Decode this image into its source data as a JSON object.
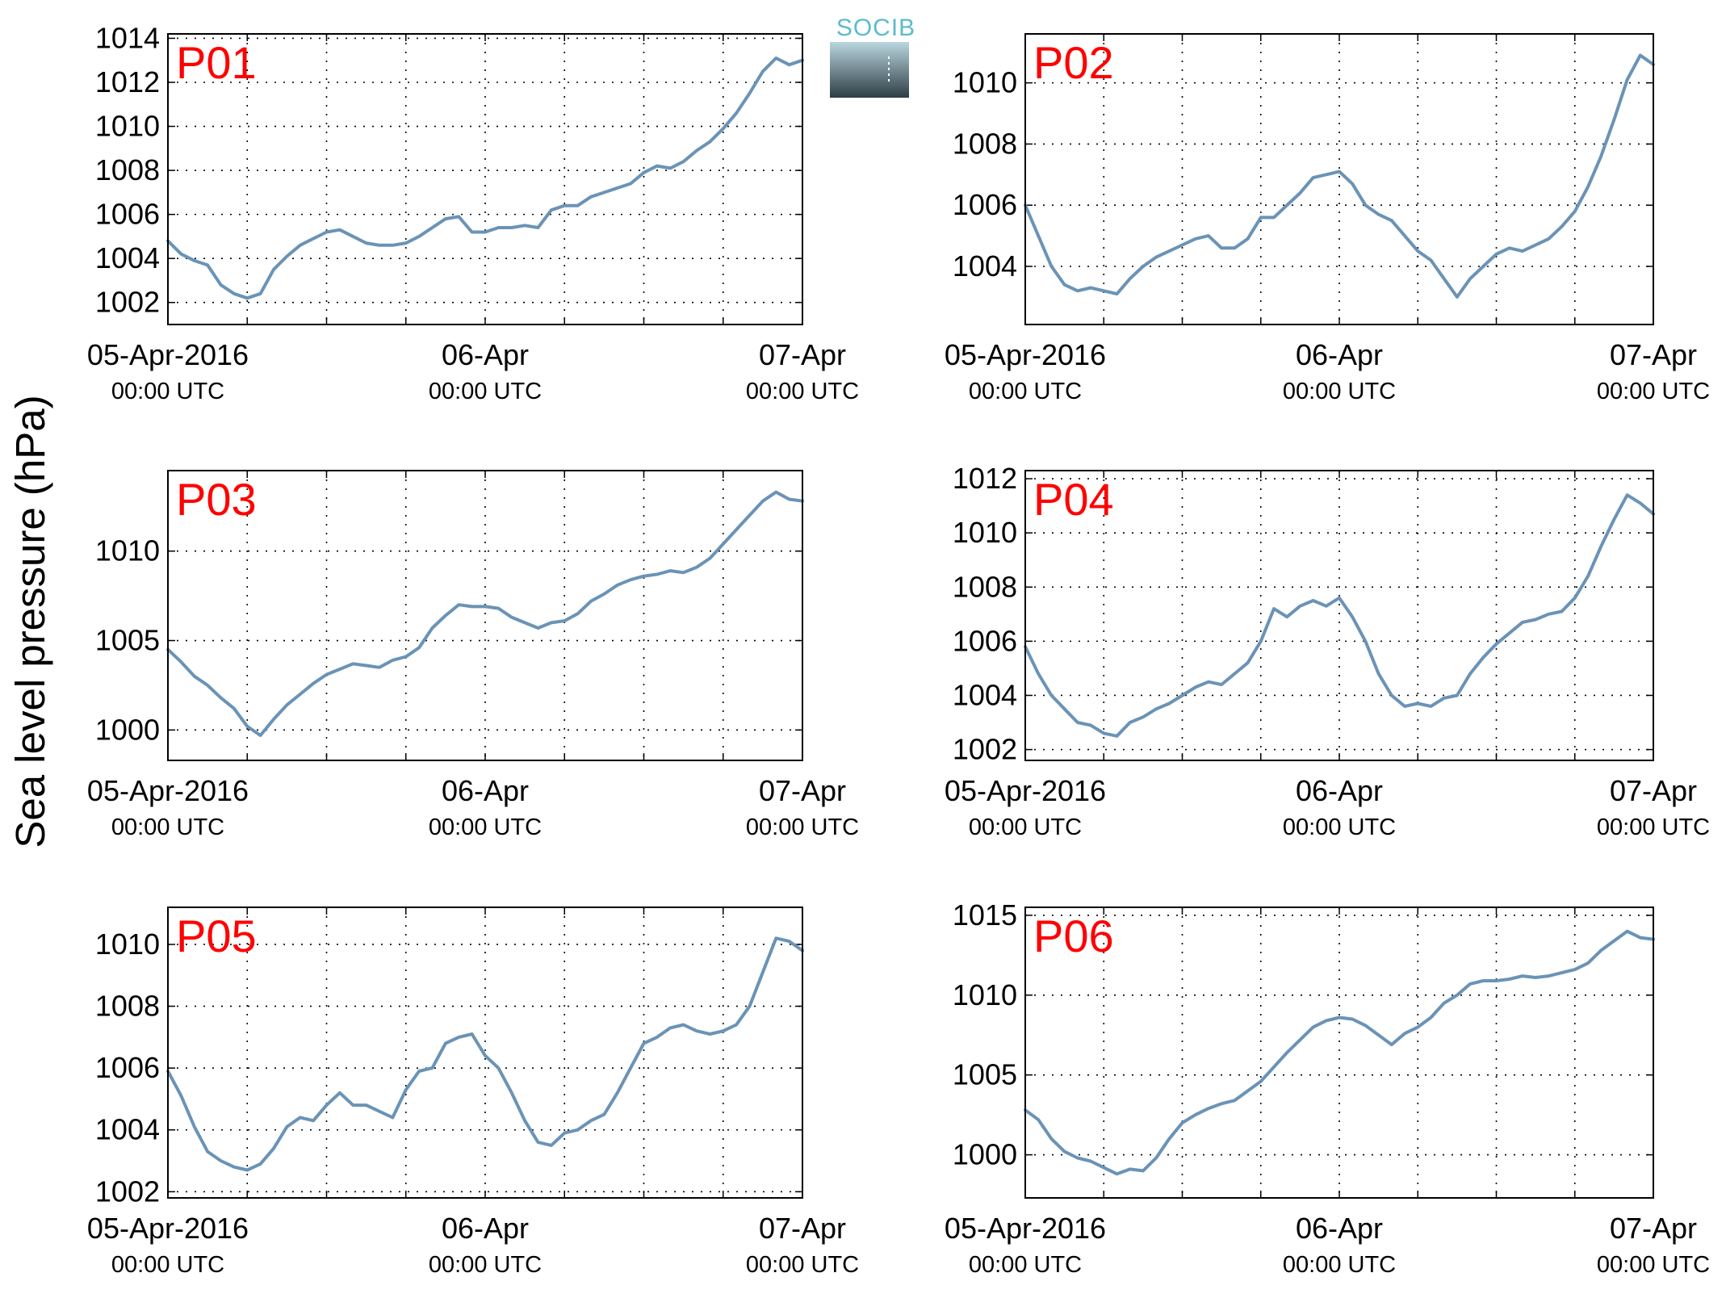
{
  "figure": {
    "ylabel": "Sea level pressure (hPa)",
    "logo_text": "SOCIB",
    "line_color": "#6a93b6",
    "panel_label_color": "#ff0000",
    "logo_colors": {
      "text": "#5bbccc",
      "top": "#b9d6de",
      "bottom": "#2e3d46"
    }
  },
  "chart_data": [
    {
      "type": "line",
      "panel": "P01",
      "x_tick_labels": [
        {
          "date": "05-Apr-2016",
          "time": "00:00 UTC"
        },
        {
          "date": "06-Apr",
          "time": "00:00 UTC"
        },
        {
          "date": "07-Apr",
          "time": "00:00 UTC"
        }
      ],
      "x_range_hours": [
        0,
        48
      ],
      "ylim": [
        1001,
        1014.2
      ],
      "yticks": [
        1002,
        1004,
        1006,
        1008,
        1010,
        1012,
        1014
      ],
      "grid": true,
      "x_hours": [
        0,
        1,
        2,
        3,
        4,
        5,
        6,
        7,
        8,
        9,
        10,
        11,
        12,
        13,
        14,
        15,
        16,
        17,
        18,
        19,
        20,
        21,
        22,
        23,
        24,
        25,
        26,
        27,
        28,
        29,
        30,
        31,
        32,
        33,
        34,
        35,
        36,
        37,
        38,
        39,
        40,
        41,
        42,
        43,
        44,
        45,
        46,
        47,
        48
      ],
      "values": [
        1004.8,
        1004.2,
        1003.9,
        1003.7,
        1002.8,
        1002.4,
        1002.2,
        1002.4,
        1003.5,
        1004.1,
        1004.6,
        1004.9,
        1005.2,
        1005.3,
        1005.0,
        1004.7,
        1004.6,
        1004.6,
        1004.7,
        1005.0,
        1005.4,
        1005.8,
        1005.9,
        1005.2,
        1005.2,
        1005.4,
        1005.4,
        1005.5,
        1005.4,
        1006.2,
        1006.4,
        1006.4,
        1006.8,
        1007.0,
        1007.2,
        1007.4,
        1007.9,
        1008.2,
        1008.1,
        1008.4,
        1008.9,
        1009.3,
        1009.9,
        1010.6,
        1011.5,
        1012.5,
        1013.1,
        1012.8,
        1013.0
      ]
    },
    {
      "type": "line",
      "panel": "P02",
      "x_tick_labels": [
        {
          "date": "05-Apr-2016",
          "time": "00:00 UTC"
        },
        {
          "date": "06-Apr",
          "time": "00:00 UTC"
        },
        {
          "date": "07-Apr",
          "time": "00:00 UTC"
        }
      ],
      "x_range_hours": [
        0,
        48
      ],
      "ylim": [
        1002.1,
        1011.6
      ],
      "yticks": [
        1004,
        1006,
        1008,
        1010
      ],
      "grid": true,
      "x_hours": [
        0,
        1,
        2,
        3,
        4,
        5,
        6,
        7,
        8,
        9,
        10,
        11,
        12,
        13,
        14,
        15,
        16,
        17,
        18,
        19,
        20,
        21,
        22,
        23,
        24,
        25,
        26,
        27,
        28,
        29,
        30,
        31,
        32,
        33,
        34,
        35,
        36,
        37,
        38,
        39,
        40,
        41,
        42,
        43,
        44,
        45,
        46,
        47,
        48
      ],
      "values": [
        1006.0,
        1005.0,
        1004.0,
        1003.4,
        1003.2,
        1003.3,
        1003.2,
        1003.1,
        1003.6,
        1004.0,
        1004.3,
        1004.5,
        1004.7,
        1004.9,
        1005.0,
        1004.6,
        1004.6,
        1004.9,
        1005.6,
        1005.6,
        1006.0,
        1006.4,
        1006.9,
        1007.0,
        1007.1,
        1006.7,
        1006.0,
        1005.7,
        1005.5,
        1005.0,
        1004.5,
        1004.2,
        1003.6,
        1003.0,
        1003.6,
        1004.0,
        1004.4,
        1004.6,
        1004.5,
        1004.7,
        1004.9,
        1005.3,
        1005.8,
        1006.6,
        1007.6,
        1008.8,
        1010.1,
        1010.9,
        1010.6
      ]
    },
    {
      "type": "line",
      "panel": "P03",
      "x_tick_labels": [
        {
          "date": "05-Apr-2016",
          "time": "00:00 UTC"
        },
        {
          "date": "06-Apr",
          "time": "00:00 UTC"
        },
        {
          "date": "07-Apr",
          "time": "00:00 UTC"
        }
      ],
      "x_range_hours": [
        0,
        48
      ],
      "ylim": [
        998.3,
        1014.5
      ],
      "yticks": [
        1000,
        1005,
        1010
      ],
      "grid": true,
      "x_hours": [
        0,
        1,
        2,
        3,
        4,
        5,
        6,
        7,
        8,
        9,
        10,
        11,
        12,
        13,
        14,
        15,
        16,
        17,
        18,
        19,
        20,
        21,
        22,
        23,
        24,
        25,
        26,
        27,
        28,
        29,
        30,
        31,
        32,
        33,
        34,
        35,
        36,
        37,
        38,
        39,
        40,
        41,
        42,
        43,
        44,
        45,
        46,
        47,
        48
      ],
      "values": [
        1004.5,
        1003.8,
        1003.0,
        1002.5,
        1001.8,
        1001.2,
        1000.2,
        999.7,
        1000.6,
        1001.4,
        1002.0,
        1002.6,
        1003.1,
        1003.4,
        1003.7,
        1003.6,
        1003.5,
        1003.9,
        1004.1,
        1004.6,
        1005.7,
        1006.4,
        1007.0,
        1006.9,
        1006.9,
        1006.8,
        1006.3,
        1006.0,
        1005.7,
        1006.0,
        1006.1,
        1006.5,
        1007.2,
        1007.6,
        1008.1,
        1008.4,
        1008.6,
        1008.7,
        1008.9,
        1008.8,
        1009.1,
        1009.6,
        1010.4,
        1011.2,
        1012.0,
        1012.8,
        1013.3,
        1012.9,
        1012.8
      ]
    },
    {
      "type": "line",
      "panel": "P04",
      "x_tick_labels": [
        {
          "date": "05-Apr-2016",
          "time": "00:00 UTC"
        },
        {
          "date": "06-Apr",
          "time": "00:00 UTC"
        },
        {
          "date": "07-Apr",
          "time": "00:00 UTC"
        }
      ],
      "x_range_hours": [
        0,
        48
      ],
      "ylim": [
        1001.6,
        1012.3
      ],
      "yticks": [
        1002,
        1004,
        1006,
        1008,
        1010,
        1012
      ],
      "grid": true,
      "x_hours": [
        0,
        1,
        2,
        3,
        4,
        5,
        6,
        7,
        8,
        9,
        10,
        11,
        12,
        13,
        14,
        15,
        16,
        17,
        18,
        19,
        20,
        21,
        22,
        23,
        24,
        25,
        26,
        27,
        28,
        29,
        30,
        31,
        32,
        33,
        34,
        35,
        36,
        37,
        38,
        39,
        40,
        41,
        42,
        43,
        44,
        45,
        46,
        47,
        48
      ],
      "values": [
        1005.8,
        1004.8,
        1004.0,
        1003.5,
        1003.0,
        1002.9,
        1002.6,
        1002.5,
        1003.0,
        1003.2,
        1003.5,
        1003.7,
        1004.0,
        1004.3,
        1004.5,
        1004.4,
        1004.8,
        1005.2,
        1006.0,
        1007.2,
        1006.9,
        1007.3,
        1007.5,
        1007.3,
        1007.6,
        1006.9,
        1006.0,
        1004.8,
        1004.0,
        1003.6,
        1003.7,
        1003.6,
        1003.9,
        1004.0,
        1004.8,
        1005.4,
        1005.9,
        1006.3,
        1006.7,
        1006.8,
        1007.0,
        1007.1,
        1007.6,
        1008.4,
        1009.5,
        1010.5,
        1011.4,
        1011.1,
        1010.7
      ]
    },
    {
      "type": "line",
      "panel": "P05",
      "x_tick_labels": [
        {
          "date": "05-Apr-2016",
          "time": "00:00 UTC"
        },
        {
          "date": "06-Apr",
          "time": "00:00 UTC"
        },
        {
          "date": "07-Apr",
          "time": "00:00 UTC"
        }
      ],
      "x_range_hours": [
        0,
        48
      ],
      "ylim": [
        1001.8,
        1011.2
      ],
      "yticks": [
        1002,
        1004,
        1006,
        1008,
        1010
      ],
      "grid": true,
      "x_hours": [
        0,
        1,
        2,
        3,
        4,
        5,
        6,
        7,
        8,
        9,
        10,
        11,
        12,
        13,
        14,
        15,
        16,
        17,
        18,
        19,
        20,
        21,
        22,
        23,
        24,
        25,
        26,
        27,
        28,
        29,
        30,
        31,
        32,
        33,
        34,
        35,
        36,
        37,
        38,
        39,
        40,
        41,
        42,
        43,
        44,
        45,
        46,
        47,
        48
      ],
      "values": [
        1005.9,
        1005.1,
        1004.1,
        1003.3,
        1003.0,
        1002.8,
        1002.7,
        1002.9,
        1003.4,
        1004.1,
        1004.4,
        1004.3,
        1004.8,
        1005.2,
        1004.8,
        1004.8,
        1004.6,
        1004.4,
        1005.3,
        1005.9,
        1006.0,
        1006.8,
        1007.0,
        1007.1,
        1006.4,
        1006.0,
        1005.2,
        1004.3,
        1003.6,
        1003.5,
        1003.9,
        1004.0,
        1004.3,
        1004.5,
        1005.2,
        1006.0,
        1006.8,
        1007.0,
        1007.3,
        1007.4,
        1007.2,
        1007.1,
        1007.2,
        1007.4,
        1008.0,
        1009.1,
        1010.2,
        1010.1,
        1009.8
      ]
    },
    {
      "type": "line",
      "panel": "P06",
      "x_tick_labels": [
        {
          "date": "05-Apr-2016",
          "time": "00:00 UTC"
        },
        {
          "date": "06-Apr",
          "time": "00:00 UTC"
        },
        {
          "date": "07-Apr",
          "time": "00:00 UTC"
        }
      ],
      "x_range_hours": [
        0,
        48
      ],
      "ylim": [
        997.3,
        1015.5
      ],
      "yticks": [
        1000,
        1005,
        1010,
        1015
      ],
      "grid": true,
      "x_hours": [
        0,
        1,
        2,
        3,
        4,
        5,
        6,
        7,
        8,
        9,
        10,
        11,
        12,
        13,
        14,
        15,
        16,
        17,
        18,
        19,
        20,
        21,
        22,
        23,
        24,
        25,
        26,
        27,
        28,
        29,
        30,
        31,
        32,
        33,
        34,
        35,
        36,
        37,
        38,
        39,
        40,
        41,
        42,
        43,
        44,
        45,
        46,
        47,
        48
      ],
      "values": [
        1002.8,
        1002.2,
        1001.0,
        1000.2,
        999.8,
        999.6,
        999.2,
        998.8,
        999.1,
        999.0,
        999.8,
        1001.0,
        1002.0,
        1002.5,
        1002.9,
        1003.2,
        1003.4,
        1004.0,
        1004.6,
        1005.5,
        1006.4,
        1007.2,
        1008.0,
        1008.4,
        1008.6,
        1008.5,
        1008.1,
        1007.5,
        1006.9,
        1007.6,
        1008.0,
        1008.6,
        1009.5,
        1010.0,
        1010.7,
        1010.9,
        1010.9,
        1011.0,
        1011.2,
        1011.1,
        1011.2,
        1011.4,
        1011.6,
        1012.0,
        1012.8,
        1013.4,
        1014.0,
        1013.6,
        1013.5
      ]
    }
  ]
}
